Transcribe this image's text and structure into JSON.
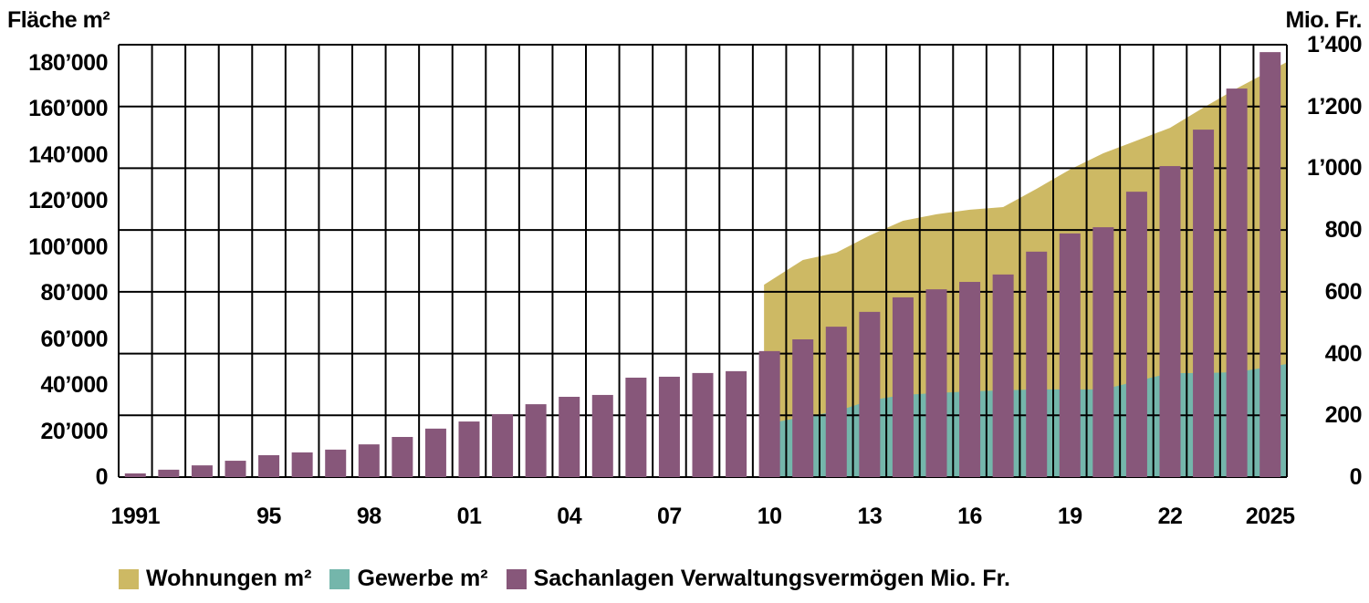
{
  "chart_data": {
    "type": "bar+area",
    "left_axis": {
      "label": "Fläche m²",
      "ticks": [
        "0",
        "20’000",
        "40’000",
        "60’000",
        "80’000",
        "100’000",
        "120’000",
        "140’000",
        "160’000",
        "180’000"
      ],
      "range": [
        0,
        180000
      ]
    },
    "right_axis": {
      "label": "Mio. Fr.",
      "ticks": [
        "0",
        "200",
        "400",
        "600",
        "800",
        "1’000",
        "1’200",
        "1’400"
      ],
      "range": [
        0,
        1400
      ]
    },
    "x_tick_labels": [
      "1991",
      "95",
      "98",
      "01",
      "04",
      "07",
      "10",
      "13",
      "16",
      "19",
      "22",
      "2025"
    ],
    "x_tick_years": [
      1991,
      1995,
      1998,
      2001,
      2004,
      2007,
      2010,
      2013,
      2016,
      2019,
      2022,
      2025
    ],
    "years": [
      1991,
      1992,
      1993,
      1994,
      1995,
      1996,
      1997,
      1998,
      1999,
      2000,
      2001,
      2002,
      2003,
      2004,
      2005,
      2006,
      2007,
      2008,
      2009,
      2010,
      2011,
      2012,
      2013,
      2014,
      2015,
      2016,
      2017,
      2018,
      2019,
      2020,
      2021,
      2022,
      2023,
      2024,
      2025
    ],
    "series": [
      {
        "name": "Sachanlagen Verwaltungsvermögen Mio. Fr.",
        "type": "bar",
        "axis": "right",
        "color": "#87577a",
        "values": [
          12,
          24,
          38,
          53,
          71,
          80,
          89,
          106,
          130,
          157,
          180,
          204,
          236,
          260,
          266,
          322,
          325,
          337,
          343,
          408,
          446,
          487,
          535,
          582,
          608,
          632,
          656,
          730,
          789,
          809,
          924,
          1007,
          1125,
          1258,
          1376
        ]
      },
      {
        "name": "Gewerbe m²",
        "type": "area",
        "axis": "left",
        "color": "#74b6ab",
        "start_year": 2010,
        "values": [
          22000,
          25000,
          27300,
          31900,
          34200,
          35000,
          35700,
          36100,
          36500,
          36500,
          36500,
          39900,
          43300,
          43300,
          43700,
          47100
        ]
      },
      {
        "name": "Wohnungen m²",
        "type": "area",
        "axis": "left",
        "stacked_on": "Gewerbe m²",
        "color": "#cdb964",
        "start_year": 2010,
        "values": [
          58100,
          65400,
          66100,
          68700,
          72500,
          74400,
          75600,
          76300,
          83500,
          91500,
          98300,
          100200,
          102100,
          110500,
          118100,
          125700
        ]
      }
    ],
    "legend": [
      "Wohnungen m²",
      "Gewerbe m²",
      "Sachanlagen Verwaltungsvermögen Mio. Fr."
    ],
    "legend_position": "bottom"
  }
}
